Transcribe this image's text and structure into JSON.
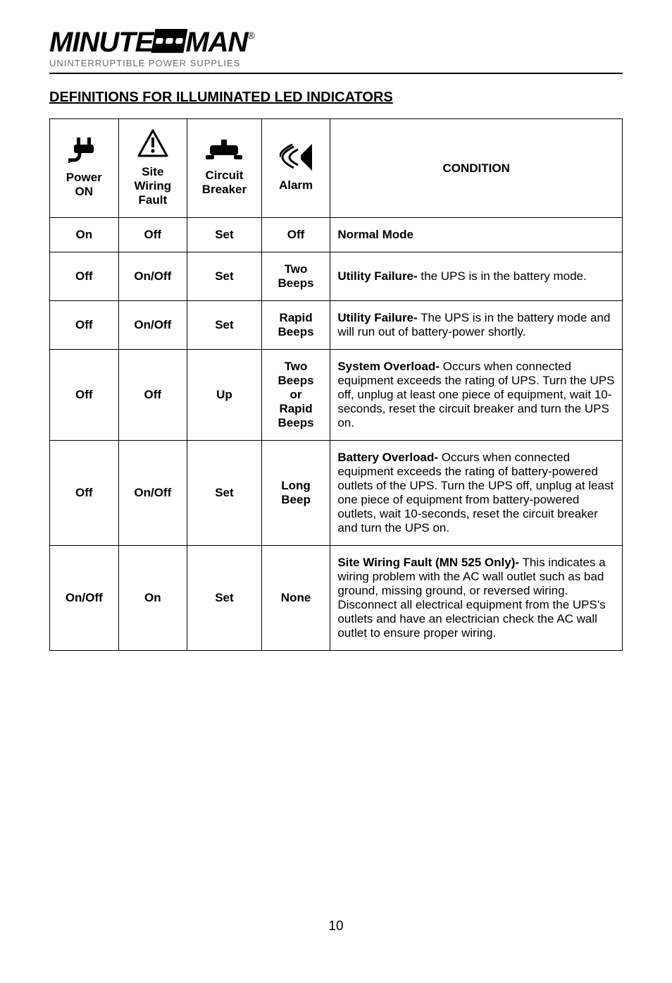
{
  "logo": {
    "main_left": "MINUTE",
    "main_right": "MAN",
    "reg": "®",
    "sub": "UNINTERRUPTIBLE POWER SUPPLIES"
  },
  "section_title": "DEFINITIONS FOR ILLUMINATED LED INDICATORS",
  "columns": {
    "power": "Power\nON",
    "site": "Site\nWiring\nFault",
    "circuit": "Circuit\nBreaker",
    "alarm": "Alarm",
    "condition": "CONDITION"
  },
  "rows": [
    {
      "power": "On",
      "site": "Off",
      "circuit": "Set",
      "alarm": "Off",
      "condition_bold": "Normal Mode",
      "condition_rest": ""
    },
    {
      "power": "Off",
      "site": "On/Off",
      "circuit": "Set",
      "alarm": "Two\nBeeps",
      "condition_bold": "Utility Failure-",
      "condition_rest": " the UPS is in the battery mode."
    },
    {
      "power": "Off",
      "site": "On/Off",
      "circuit": "Set",
      "alarm": "Rapid\nBeeps",
      "condition_bold": "Utility Failure-",
      "condition_rest": " The UPS is in the battery mode and will run out of battery-power shortly."
    },
    {
      "power": "Off",
      "site": "Off",
      "circuit": "Up",
      "alarm": "Two\nBeeps\nor\nRapid\nBeeps",
      "condition_bold": "System Overload-",
      "condition_rest": " Occurs when connected equipment exceeds the rating of UPS.  Turn the UPS off, unplug at least one piece of equipment, wait 10-seconds, reset the circuit breaker and turn the UPS on."
    },
    {
      "power": "Off",
      "site": "On/Off",
      "circuit": "Set",
      "alarm": "Long\nBeep",
      "condition_bold": "Battery Overload-",
      "condition_rest": " Occurs when connected equipment exceeds the rating of battery-powered outlets of the UPS.  Turn the UPS off, unplug at least one piece of equipment from battery-powered outlets, wait 10-seconds, reset the circuit breaker and turn the UPS on."
    },
    {
      "power": "On/Off",
      "site": "On",
      "circuit": "Set",
      "alarm": "None",
      "condition_bold": "Site Wiring Fault (MN 525 Only)-",
      "condition_rest": " This indicates a wiring problem with the AC wall outlet such as bad ground, missing ground, or reversed wiring.  Disconnect all electrical equipment from the UPS's outlets and have an electrician check the AC wall outlet to ensure proper wiring."
    }
  ],
  "page_number": "10"
}
